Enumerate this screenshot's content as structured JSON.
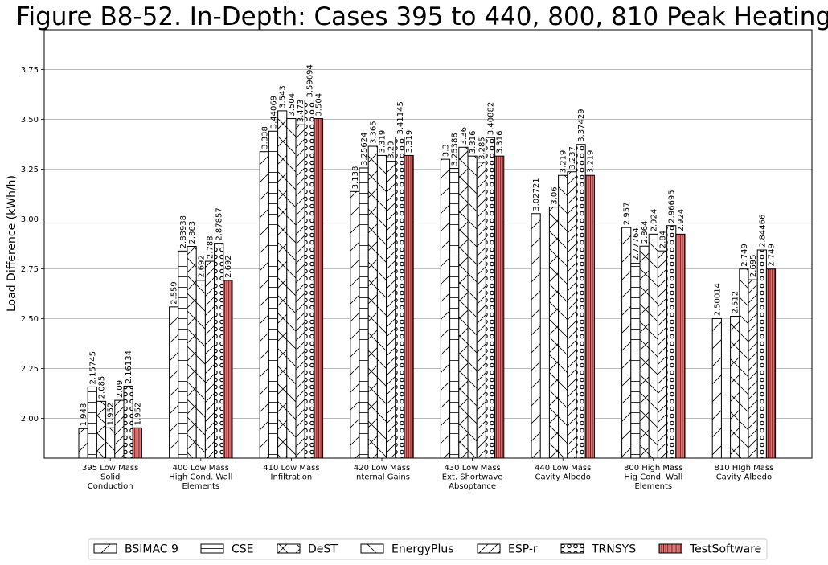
{
  "chart_data": {
    "type": "bar",
    "title": "Figure B8-52. In-Depth: Cases 395 to 440, 800, 810 Peak Heating",
    "xlabel": "",
    "ylabel": "Load Difference (kWh/h)",
    "ylim": [
      1.8,
      3.95
    ],
    "yticks": [
      2.0,
      2.25,
      2.5,
      2.75,
      3.0,
      3.25,
      3.5,
      3.75
    ],
    "ytick_labels": [
      "2.00",
      "2.25",
      "2.50",
      "2.75",
      "3.00",
      "3.25",
      "3.50",
      "3.75"
    ],
    "grid": true,
    "legend_position": "bottom-center",
    "categories": [
      [
        "395 Low Mass",
        "Solid",
        "Conduction"
      ],
      [
        "400 Low Mass",
        "High Cond. Wall",
        "Elements"
      ],
      [
        "410 Low Mass",
        "Infiltration"
      ],
      [
        "420 Low Mass",
        "Internal Gains"
      ],
      [
        "430 Low Mass",
        "Ext. Shortwave",
        "Absoptance"
      ],
      [
        "440 Low Mass",
        "Cavity Albedo"
      ],
      [
        "800 High Mass",
        "Hig Cond. Wall",
        "Elements"
      ],
      [
        "810 HIgh Mass",
        "Cavity Albedo"
      ]
    ],
    "series": [
      {
        "name": "BSIMAC 9",
        "hatch": "diag-up",
        "color": "#ffffff",
        "values": [
          1.948,
          2.559,
          3.338,
          3.138,
          3.3,
          3.02721,
          2.957,
          2.50014
        ],
        "labels": [
          "1.948",
          "2.559",
          "3.338",
          "3.138",
          "3.3",
          "3.02721",
          "2.957",
          "2.50014"
        ]
      },
      {
        "name": "CSE",
        "hatch": "horizontal",
        "color": "#ffffff",
        "values": [
          2.15745,
          2.83938,
          3.44069,
          3.25624,
          3.25388,
          null,
          2.77764,
          null
        ],
        "labels": [
          "2.15745",
          "2.83938",
          "3.44069",
          "3.25624",
          "3.25388",
          "",
          "2.77764",
          ""
        ]
      },
      {
        "name": "DeST",
        "hatch": "cross",
        "color": "#ffffff",
        "values": [
          2.085,
          2.863,
          3.543,
          3.365,
          3.36,
          3.06,
          2.864,
          2.512
        ],
        "labels": [
          "2.085",
          "2.863",
          "3.543",
          "3.365",
          "3.36",
          "3.06",
          "2.864",
          "2.512"
        ]
      },
      {
        "name": "EnergyPlus",
        "hatch": "diag-down",
        "color": "#ffffff",
        "values": [
          1.952,
          2.692,
          3.504,
          3.319,
          3.316,
          3.219,
          2.924,
          2.749
        ],
        "labels": [
          "1.952",
          "2.692",
          "3.504",
          "3.319",
          "3.316",
          "3.219",
          "2.924",
          "2.749"
        ]
      },
      {
        "name": "ESP-r",
        "hatch": "diag-up-dense",
        "color": "#ffffff",
        "values": [
          2.09,
          2.788,
          3.473,
          3.29,
          3.285,
          3.237,
          2.84,
          2.695
        ],
        "labels": [
          "2.09",
          "2.788",
          "3.473",
          "3.29",
          "3.285",
          "3.237",
          "2.84",
          "2.695"
        ]
      },
      {
        "name": "TRNSYS",
        "hatch": "circles",
        "color": "#ffffff",
        "values": [
          2.16134,
          2.87857,
          3.59694,
          3.41145,
          3.40882,
          3.37429,
          2.96695,
          2.84466
        ],
        "labels": [
          "2.16134",
          "2.87857",
          "3.59694",
          "3.41145",
          "3.40882",
          "3.37429",
          "2.96695",
          "2.84466"
        ]
      },
      {
        "name": "TestSoftware",
        "hatch": "vertical",
        "color": "#f07070",
        "values": [
          1.952,
          2.692,
          3.504,
          3.319,
          3.316,
          3.219,
          2.924,
          2.749
        ],
        "labels": [
          "1.952",
          "2.692",
          "3.504",
          "3.319",
          "3.316",
          "3.219",
          "2.924",
          "2.749"
        ]
      }
    ]
  }
}
